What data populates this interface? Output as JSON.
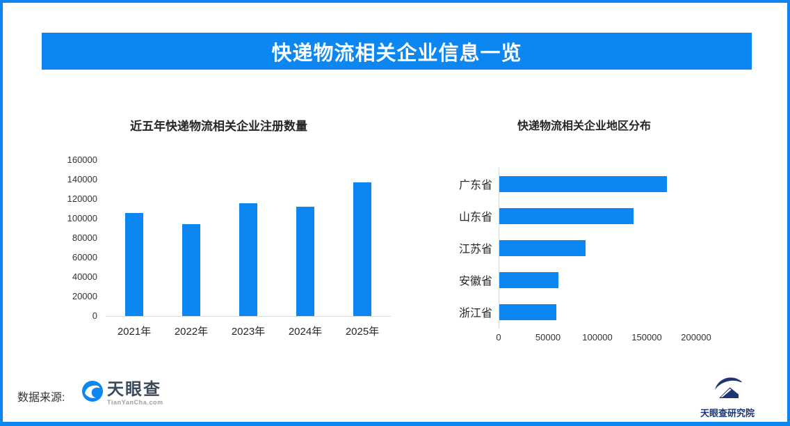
{
  "page": {
    "title": "快递物流相关企业信息一览",
    "source_label": "数据来源:",
    "tianyancha": {
      "name": "天眼查",
      "domain": "TianYanCha.com"
    },
    "research_institute": "天眼查研究院",
    "colors": {
      "primary": "#0c87f2",
      "navy": "#1d3572",
      "axis_line": "#d9d9d9"
    }
  },
  "chart_data": [
    {
      "type": "bar",
      "title": "近五年快递物流相关企业注册数量",
      "categories": [
        "2021年",
        "2022年",
        "2023年",
        "2024年",
        "2025年"
      ],
      "values": [
        106000,
        94000,
        116000,
        112000,
        137000
      ],
      "ylabel": "",
      "ylim": [
        0,
        160000
      ],
      "ytick_step": 20000,
      "grid": false,
      "bar_color": "#0c87f2"
    },
    {
      "type": "bar-horizontal",
      "title": "快递物流相关企业地区分布",
      "categories": [
        "广东省",
        "山东省",
        "江苏省",
        "安徽省",
        "浙江省"
      ],
      "values": [
        170000,
        136000,
        87000,
        60000,
        58000
      ],
      "xlim": [
        0,
        200000
      ],
      "xticks": [
        0,
        50000,
        100000,
        150000,
        200000
      ],
      "grid": false,
      "bar_color": "#0c87f2"
    }
  ]
}
